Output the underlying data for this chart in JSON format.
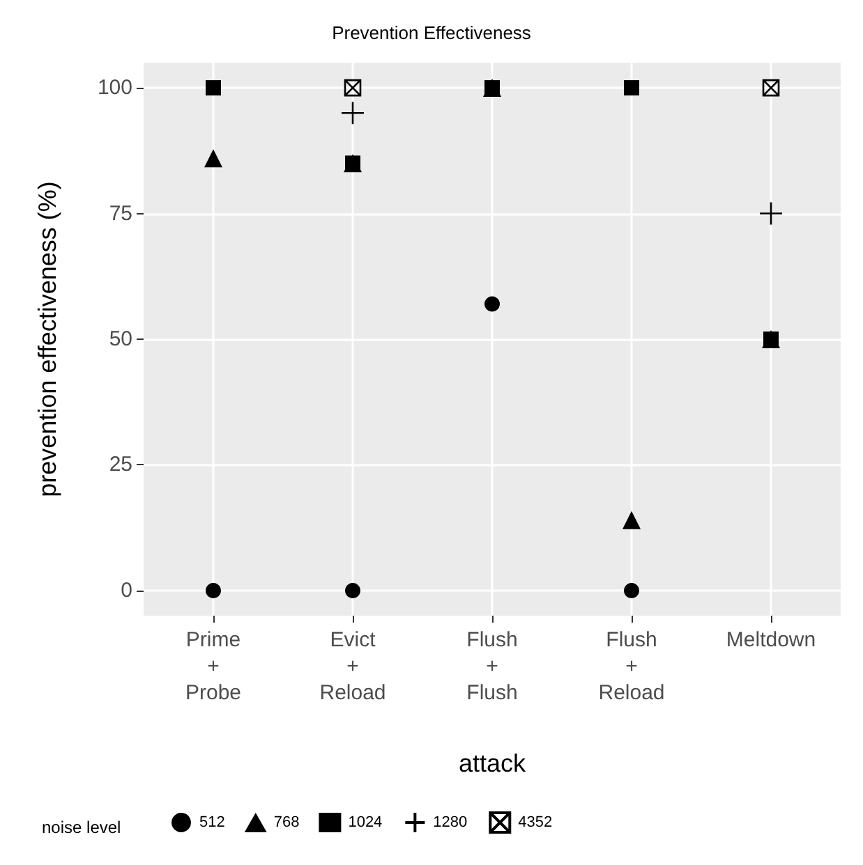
{
  "chart_data": {
    "type": "scatter",
    "title": "Prevention Effectiveness",
    "xlabel": "attack",
    "ylabel": "prevention effectiveness (%)",
    "legend_title": "noise level",
    "categories": [
      "Prime + Probe",
      "Evict + Reload",
      "Flush + Flush",
      "Flush + Reload",
      "Meltdown"
    ],
    "series": [
      {
        "name": "512",
        "color": "#000000",
        "marker": "circle",
        "values": [
          0,
          0,
          57,
          0,
          null
        ]
      },
      {
        "name": "768",
        "color": "#000000",
        "marker": "triangle",
        "values": [
          86,
          85,
          100,
          14,
          50
        ]
      },
      {
        "name": "1024",
        "color": "#000000",
        "marker": "square",
        "values": [
          100,
          85,
          100,
          100,
          50
        ]
      },
      {
        "name": "1280",
        "color": "#000000",
        "marker": "cross",
        "values": [
          null,
          95,
          null,
          null,
          75
        ]
      },
      {
        "name": "4352",
        "color": "#000000",
        "values": [
          null,
          100,
          null,
          null,
          100
        ]
      }
    ],
    "ylim": [
      -5,
      105
    ],
    "yticks": [
      0,
      25,
      50,
      75,
      100
    ],
    "grid": true,
    "legend": "bottom"
  }
}
